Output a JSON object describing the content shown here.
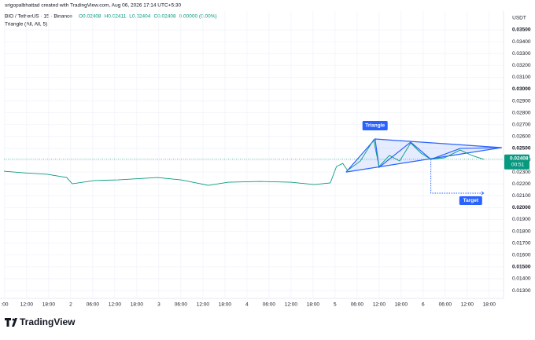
{
  "header": {
    "author_line": "srigopalbhattad created with TradingView.com, Aug 06, 2026 17:14 UTC+5:30",
    "symbol": "BIO / TetherUS · 15 · Binance",
    "ohlc": [
      "O0.02408",
      "H0.02411",
      "L0.02404",
      "C0.02408",
      "0.00000 (0.00%)"
    ],
    "indicator": "Triangle (All, All, 5)",
    "currency": "USDT",
    "brand": "TradingView"
  },
  "chart_data": {
    "type": "line",
    "color": "#089981",
    "grid": true,
    "x": [
      5.8,
      11.1,
      17.6,
      22.9,
      24.4,
      30.4,
      36.9,
      47.6,
      54.0,
      61.5,
      66.9,
      75.4,
      84.0,
      90.4,
      94.7,
      96.4,
      98.1,
      99.4,
      102.9,
      106.5,
      108.0,
      110.8,
      113.6,
      116.6,
      119.4,
      122.1,
      125.8,
      130.1,
      133.3,
      136.5
    ],
    "values": [
      0.02307,
      0.02294,
      0.02281,
      0.02254,
      0.02201,
      0.02228,
      0.02234,
      0.02254,
      0.02234,
      0.02188,
      0.02214,
      0.02221,
      0.02214,
      0.02194,
      0.02208,
      0.02347,
      0.02373,
      0.02314,
      0.02393,
      0.02572,
      0.02347,
      0.0244,
      0.02393,
      0.02545,
      0.0246,
      0.02407,
      0.0242,
      0.02486,
      0.0244,
      0.02407
    ],
    "xlim": [
      5.8,
      141.9
    ],
    "ylim": [
      0.01234,
      0.03659
    ],
    "xticks": [
      {
        "value": 6,
        "label": ":00"
      },
      {
        "value": 12,
        "label": "12:00"
      },
      {
        "value": 18,
        "label": "18:00"
      },
      {
        "value": 24,
        "label": "2"
      },
      {
        "value": 30,
        "label": "06:00"
      },
      {
        "value": 36,
        "label": "12:00"
      },
      {
        "value": 42,
        "label": "18:00"
      },
      {
        "value": 48,
        "label": "3"
      },
      {
        "value": 54,
        "label": "06:00"
      },
      {
        "value": 60,
        "label": "12:00"
      },
      {
        "value": 66,
        "label": "18:00"
      },
      {
        "value": 72,
        "label": "4"
      },
      {
        "value": 78,
        "label": "06:00"
      },
      {
        "value": 84,
        "label": "12:00"
      },
      {
        "value": 90,
        "label": "18:00"
      },
      {
        "value": 96,
        "label": "5"
      },
      {
        "value": 102,
        "label": "06:00"
      },
      {
        "value": 108,
        "label": "12:00"
      },
      {
        "value": 114,
        "label": "18:00"
      },
      {
        "value": 120,
        "label": "6"
      },
      {
        "value": 126,
        "label": "06:00"
      },
      {
        "value": 132,
        "label": "12:00"
      },
      {
        "value": 138,
        "label": "18:00"
      }
    ],
    "yticks": [
      {
        "value": 0.035,
        "label": "0.03500"
      },
      {
        "value": 0.034,
        "label": "0.03400"
      },
      {
        "value": 0.033,
        "label": "0.03300"
      },
      {
        "value": 0.032,
        "label": "0.03200"
      },
      {
        "value": 0.031,
        "label": "0.03100"
      },
      {
        "value": 0.03,
        "label": "0.03000"
      },
      {
        "value": 0.029,
        "label": "0.02900"
      },
      {
        "value": 0.028,
        "label": "0.02800"
      },
      {
        "value": 0.027,
        "label": "0.02700"
      },
      {
        "value": 0.026,
        "label": "0.02600"
      },
      {
        "value": 0.025,
        "label": "0.02500"
      },
      {
        "value": 0.024,
        "label": "0.02400"
      },
      {
        "value": 0.023,
        "label": "0.02300"
      },
      {
        "value": 0.022,
        "label": "0.02200"
      },
      {
        "value": 0.021,
        "label": "0.02100"
      },
      {
        "value": 0.02,
        "label": "0.02000"
      },
      {
        "value": 0.019,
        "label": "0.01900"
      },
      {
        "value": 0.018,
        "label": "0.01800"
      },
      {
        "value": 0.017,
        "label": "0.01700"
      },
      {
        "value": 0.016,
        "label": "0.01600"
      },
      {
        "value": 0.015,
        "label": "0.01500"
      },
      {
        "value": 0.014,
        "label": "0.01400"
      },
      {
        "value": 0.013,
        "label": "0.01300"
      }
    ],
    "last_price": {
      "value": 0.02408,
      "label": "0.02408"
    },
    "countdown": "00:51",
    "pattern": {
      "label": "Triangle",
      "color": "#2962ff",
      "x": [
        99.0,
        106.9,
        108.0,
        116.6,
        122.1,
        130.1,
        141.4
      ],
      "values": [
        0.023,
        0.02579,
        0.0234,
        0.02552,
        0.02407,
        0.02499,
        0.02506
      ]
    },
    "target": {
      "label": "Target",
      "x": [
        122.1,
        136.5
      ],
      "value": 0.02122
    }
  }
}
